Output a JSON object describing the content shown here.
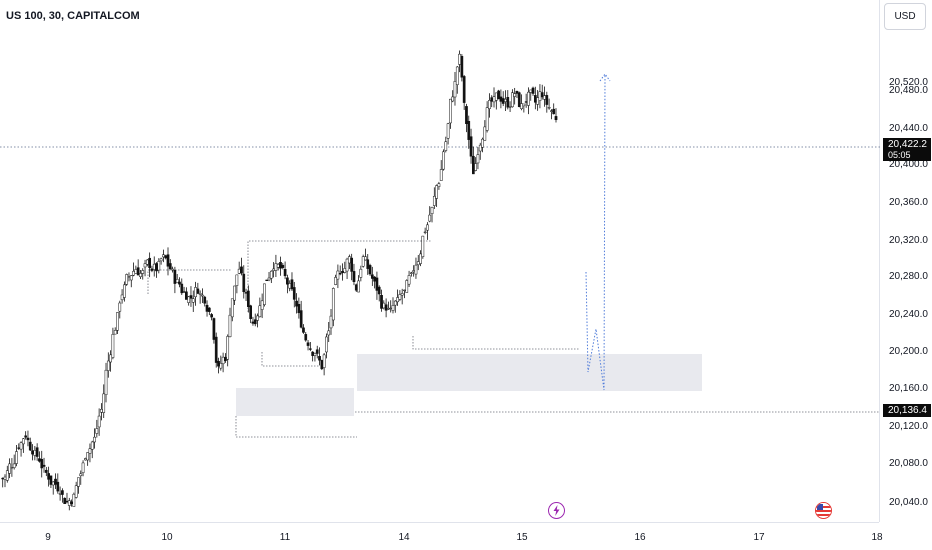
{
  "header": {
    "symbol_title": "US 100, 30, CAPITALCOM"
  },
  "price_scale": {
    "currency": "USD",
    "ticks": [
      "20,520.0",
      "20,480.0",
      "20,440.0",
      "20,400.0",
      "20,360.0",
      "20,320.0",
      "20,280.0",
      "20,240.0",
      "20,200.0",
      "20,160.0",
      "20,120.0",
      "20,080.0",
      "20,040.0"
    ],
    "current_price": "20,422.2",
    "countdown": "05:05",
    "level_price": "20,136.4"
  },
  "time_axis": {
    "labels": [
      "9",
      "10",
      "11",
      "14",
      "15",
      "16",
      "17",
      "18"
    ]
  },
  "events": [
    {
      "name": "lightning-event-icon",
      "color": "#9c27b0"
    },
    {
      "name": "us-flag-event-icon",
      "color": "#e53935"
    }
  ],
  "chart_data": {
    "type": "candlestick",
    "title": "US 100, 30, CAPITALCOM",
    "ylim": [
      20010,
      20545
    ],
    "x_categories": [
      "9",
      "10",
      "11",
      "14",
      "15",
      "16",
      "17",
      "18"
    ],
    "close_path": [
      [
        "9",
        20055
      ],
      [
        "9",
        20070
      ],
      [
        "9",
        20090
      ],
      [
        "9",
        20100
      ],
      [
        "9",
        20085
      ],
      [
        "9",
        20075
      ],
      [
        "9",
        20060
      ],
      [
        "9",
        20050
      ],
      [
        "9",
        20045
      ],
      [
        "9",
        20030
      ],
      [
        "9",
        20035
      ],
      [
        "9",
        20060
      ],
      [
        "9",
        20085
      ],
      [
        "9",
        20095
      ],
      [
        "9",
        20125
      ],
      [
        "9",
        20175
      ],
      [
        "9",
        20210
      ],
      [
        "9",
        20245
      ],
      [
        "9",
        20262
      ],
      [
        "9",
        20270
      ],
      [
        "9",
        20265
      ],
      [
        "9",
        20275
      ],
      [
        "10",
        20270
      ],
      [
        "10",
        20280
      ],
      [
        "10",
        20270
      ],
      [
        "10",
        20255
      ],
      [
        "10",
        20245
      ],
      [
        "10",
        20240
      ],
      [
        "10",
        20250
      ],
      [
        "10",
        20240
      ],
      [
        "10",
        20225
      ],
      [
        "10",
        20165
      ],
      [
        "10",
        20180
      ],
      [
        "10",
        20240
      ],
      [
        "10",
        20270
      ],
      [
        "10",
        20240
      ],
      [
        "10",
        20215
      ],
      [
        "11",
        20230
      ],
      [
        "11",
        20260
      ],
      [
        "11",
        20275
      ],
      [
        "11",
        20270
      ],
      [
        "11",
        20255
      ],
      [
        "11",
        20240
      ],
      [
        "11",
        20215
      ],
      [
        "11",
        20195
      ],
      [
        "11",
        20185
      ],
      [
        "11",
        20170
      ],
      [
        "11",
        20205
      ],
      [
        "11",
        20255
      ],
      [
        "11",
        20270
      ],
      [
        "11",
        20280
      ],
      [
        "11",
        20250
      ],
      [
        "11",
        20280
      ],
      [
        "11",
        20265
      ],
      [
        "11",
        20250
      ],
      [
        "11",
        20230
      ],
      [
        "11",
        20225
      ],
      [
        "11",
        20235
      ],
      [
        "14",
        20245
      ],
      [
        "14",
        20260
      ],
      [
        "14",
        20280
      ],
      [
        "14",
        20310
      ],
      [
        "14",
        20330
      ],
      [
        "14",
        20360
      ],
      [
        "14",
        20400
      ],
      [
        "14",
        20450
      ],
      [
        "14",
        20485
      ],
      [
        "14",
        20420
      ],
      [
        "14",
        20370
      ],
      [
        "14",
        20400
      ],
      [
        "14",
        20430
      ],
      [
        "14",
        20440
      ],
      [
        "15",
        20445
      ],
      [
        "15",
        20440
      ],
      [
        "15",
        20450
      ],
      [
        "15",
        20435
      ],
      [
        "15",
        20445
      ],
      [
        "15",
        20440
      ],
      [
        "15",
        20450
      ],
      [
        "15",
        20435
      ],
      [
        "15",
        20425
      ]
    ]
  }
}
